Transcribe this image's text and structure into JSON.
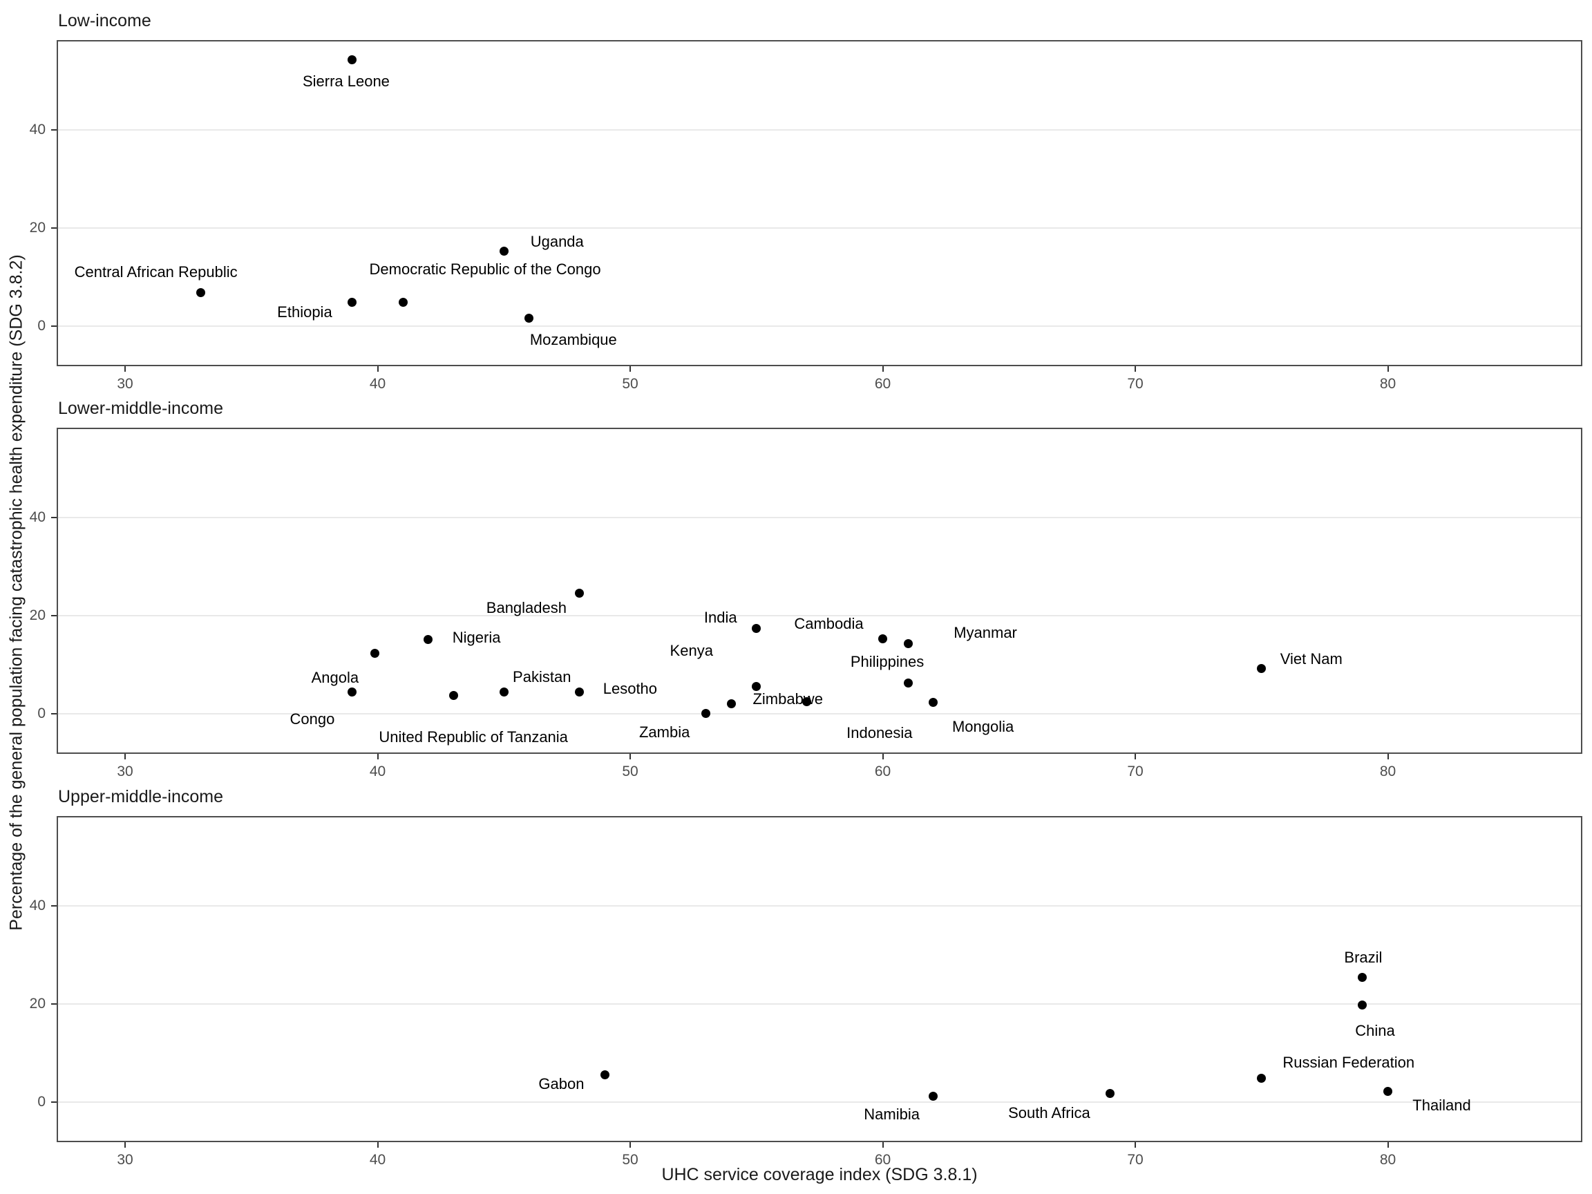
{
  "axes": {
    "x_label": "UHC service coverage index (SDG 3.8.1)",
    "y_label": "Percentage of the general population facing catastrophic health expenditure (SDG 3.8.2)",
    "x_ticks": [
      30,
      40,
      50,
      60,
      70,
      80
    ],
    "y_ticks": [
      0,
      20,
      40
    ],
    "x_range": [
      27.3,
      87.7
    ],
    "y_range": [
      -8,
      58.2
    ],
    "grid": "horizontal major gridlines only"
  },
  "style": {
    "background": "#ffffff",
    "dot_color": "#000000",
    "leader_color": "#999999",
    "grid_color": "#e9e9e9",
    "panel_border_color": "#4d4d4d",
    "tick_label_color": "#4d4d4d",
    "text_color": "#000000"
  },
  "chart_data": [
    {
      "type": "scatter",
      "facet": "Low-income",
      "xlim": [
        27.3,
        87.7
      ],
      "ylim": [
        -8,
        58.2
      ],
      "points": [
        {
          "label": "Sierra Leone",
          "x": 39,
          "y": 54.2,
          "label_offset": [
            -9,
            31
          ],
          "leader": [
            -3,
            10,
            -9,
            22
          ]
        },
        {
          "label": "Uganda",
          "x": 45,
          "y": 15.3,
          "label_offset": [
            77,
            -13
          ],
          "leader": [
            12,
            0,
            28,
            -2
          ]
        },
        {
          "label": "Central African Republic",
          "x": 33,
          "y": 6.8,
          "label_offset": [
            -65,
            -30
          ],
          "leader": [
            -38,
            -18,
            -14,
            -5
          ]
        },
        {
          "label": "Ethiopia",
          "x": 39,
          "y": 4.9,
          "label_offset": [
            -69,
            15
          ],
          "leader": [
            -22,
            6,
            -11,
            3
          ]
        },
        {
          "label": "Democratic Republic of the Congo",
          "x": 41,
          "y": 4.9,
          "label_offset": [
            119,
            -47
          ],
          "leader": [
            59,
            -22,
            11,
            -5
          ]
        },
        {
          "label": "Mozambique",
          "x": 46,
          "y": 1.6,
          "label_offset": [
            64,
            31
          ],
          "leader": [
            8,
            8,
            24,
            22
          ]
        }
      ]
    },
    {
      "type": "scatter",
      "facet": "Lower-middle-income",
      "xlim": [
        27.3,
        87.7
      ],
      "ylim": [
        -8,
        58.2
      ],
      "points": [
        {
          "label": "Bangladesh",
          "x": 48,
          "y": 24.6,
          "label_offset": [
            -77,
            22
          ],
          "leader": null
        },
        {
          "label": "India",
          "x": 55,
          "y": 17.3,
          "label_offset": [
            -52,
            -16
          ],
          "leader": [
            -30,
            -8,
            -16,
            -4
          ]
        },
        {
          "label": "Cambodia",
          "x": 60,
          "y": 15.2,
          "label_offset": [
            -78,
            -22
          ],
          "leader": [
            -55,
            -14,
            -18,
            -4
          ]
        },
        {
          "label": "Nigeria",
          "x": 42,
          "y": 15.1,
          "label_offset": [
            70,
            -3
          ],
          "leader": [
            16,
            13,
            28,
            16
          ]
        },
        {
          "label": "Myanmar",
          "x": 61,
          "y": 14.3,
          "label_offset": [
            112,
            -15
          ],
          "leader": [
            14,
            -4,
            80,
            -13
          ]
        },
        {
          "label": "Angola",
          "x": 39.9,
          "y": 12.3,
          "label_offset": [
            -58,
            35
          ],
          "leader": [
            -25,
            18,
            -13,
            10
          ]
        },
        {
          "label": "Viet Nam",
          "x": 75,
          "y": 9.2,
          "label_offset": [
            72,
            -14
          ],
          "leader": [
            14,
            -2,
            30,
            -5
          ]
        },
        {
          "label": "Philippines",
          "x": 61,
          "y": 6.2,
          "label_offset": [
            -30,
            -31
          ],
          "leader": [
            -18,
            -20,
            -8,
            -9
          ]
        },
        {
          "label": "Kenya",
          "x": 55,
          "y": 5.5,
          "label_offset": [
            -94,
            -52
          ],
          "leader": [
            -75,
            -40,
            -12,
            -6
          ]
        },
        {
          "label": "Congo",
          "x": 39,
          "y": 4.4,
          "label_offset": [
            -58,
            39
          ],
          "leader": [
            -25,
            20,
            -14,
            11
          ]
        },
        {
          "label": "Pakistan",
          "x": 45,
          "y": 4.4,
          "label_offset": [
            55,
            -22
          ],
          "leader": [
            9,
            -8,
            30,
            -17
          ]
        },
        {
          "label": "Lesotho",
          "x": 48,
          "y": 4.4,
          "label_offset": [
            73,
            -5
          ],
          "leader": [
            14,
            -2,
            30,
            -4
          ]
        },
        {
          "label": "United Republic of Tanzania",
          "x": 43,
          "y": 3.7,
          "label_offset": [
            29,
            60
          ],
          "leader": [
            4,
            10,
            30,
            46
          ]
        },
        {
          "label": "Indonesia",
          "x": 57,
          "y": 2.5,
          "label_offset": [
            105,
            46
          ],
          "leader": [
            8,
            6,
            85,
            40
          ]
        },
        {
          "label": "Mongolia",
          "x": 62,
          "y": 2.3,
          "label_offset": [
            72,
            35
          ],
          "leader": [
            12,
            5,
            48,
            26
          ]
        },
        {
          "label": "Zimbabwe",
          "x": 54,
          "y": 2.0,
          "label_offset": [
            82,
            -7
          ],
          "leader": [
            15,
            -3,
            30,
            -5
          ]
        },
        {
          "label": "Zambia",
          "x": 53,
          "y": 0.1,
          "label_offset": [
            -60,
            28
          ],
          "leader": [
            -28,
            14,
            -15,
            7
          ]
        }
      ]
    },
    {
      "type": "scatter",
      "facet": "Upper-middle-income",
      "xlim": [
        27.3,
        87.7
      ],
      "ylim": [
        -8,
        58.2
      ],
      "points": [
        {
          "label": "Brazil",
          "x": 79,
          "y": 25.4,
          "label_offset": [
            1,
            -28
          ],
          "leader": [
            0,
            -16,
            1,
            -9
          ]
        },
        {
          "label": "China",
          "x": 79,
          "y": 19.7,
          "label_offset": [
            18,
            37
          ],
          "leader": [
            5,
            9,
            17,
            23
          ]
        },
        {
          "label": "Gabon",
          "x": 49,
          "y": 5.6,
          "label_offset": [
            -63,
            14
          ],
          "leader": [
            -24,
            6,
            -14,
            3
          ]
        },
        {
          "label": "Russian Federation",
          "x": 75,
          "y": 4.8,
          "label_offset": [
            126,
            -23
          ],
          "leader": [
            8,
            -8,
            24,
            -18
          ]
        },
        {
          "label": "Thailand",
          "x": 80,
          "y": 2.2,
          "label_offset": [
            78,
            21
          ],
          "leader": [
            16,
            2,
            34,
            3
          ]
        },
        {
          "label": "South Africa",
          "x": 69,
          "y": 1.8,
          "label_offset": [
            -88,
            29
          ],
          "leader": [
            -28,
            20,
            -10,
            7
          ]
        },
        {
          "label": "Namibia",
          "x": 62,
          "y": 1.2,
          "label_offset": [
            -60,
            27
          ],
          "leader": [
            -28,
            12,
            -16,
            6
          ]
        }
      ]
    }
  ]
}
